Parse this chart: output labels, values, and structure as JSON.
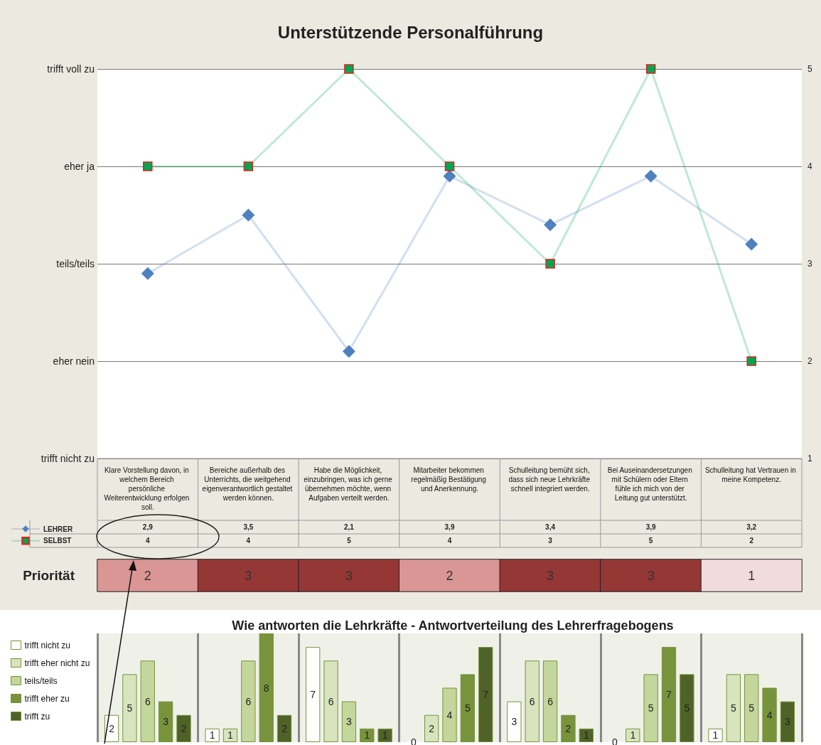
{
  "chart_data": [
    {
      "type": "line",
      "title": "Unterstützende Personalführung",
      "categories": [
        "Klare Vorstellung davon, in welchem Bereich persönliche Weiterentwicklung erfolgen soll.",
        "Bereiche außerhalb des Unterrichts, die weitgehend eigenverantwortlich gestaltet werden können.",
        "Habe die Möglichkeit, einzubringen, was ich gerne übernehmen möchte, wenn Aufgaben verteilt werden.",
        "Mitarbeiter bekommen regelmäßig Bestätigung und Anerkennung.",
        "Schulleitung bemüht sich, dass sich neue Lehrkräfte schnell integriert werden.",
        "Bei Auseinandersetzungen mit Schülern oder Eltern fühle ich mich von der Leitung gut unterstützt.",
        "Schulleitung hat Vertrauen in meine Kompetenz."
      ],
      "series": [
        {
          "name": "LEHRER",
          "color": "#4f81bd",
          "marker": "diamond",
          "values": [
            2.9,
            3.5,
            2.1,
            3.9,
            3.4,
            3.9,
            3.2
          ],
          "value_labels": [
            "2,9",
            "3,5",
            "2,1",
            "3,9",
            "3,4",
            "3,9",
            "3,2"
          ]
        },
        {
          "name": "SELBST",
          "color": "#00a650",
          "marker": "square",
          "values": [
            4,
            4,
            5,
            4,
            3,
            5,
            2
          ],
          "value_labels": [
            "4",
            "4",
            "5",
            "4",
            "3",
            "5",
            "2"
          ]
        }
      ],
      "ylim": [
        1,
        5
      ],
      "yticks": [
        1,
        2,
        3,
        4,
        5
      ],
      "annotations": [
        "trifft nicht zu",
        "eher nein",
        "teils/teils",
        "eher ja",
        "trifft voll zu"
      ],
      "grid": "y",
      "legend": "bottom left"
    },
    {
      "type": "heatmap",
      "categories": [
        null,
        null,
        null,
        null,
        null,
        null,
        null
      ],
      "y_categories": [
        "Priorität"
      ],
      "cells": [
        [
          2,
          3,
          3,
          2,
          3,
          3,
          1
        ]
      ],
      "cell_labels": [
        [
          "2",
          "3",
          "3",
          "2",
          "3",
          "3",
          "1"
        ]
      ]
    },
    {
      "type": "bar",
      "title": "Wie antworten die Lehrkräfte - Antwortverteilung des Lehrerfragebogens",
      "categories": [
        null,
        null,
        null,
        null,
        null,
        null,
        null
      ],
      "series": [
        {
          "name": "trifft nicht zu",
          "color": "#ffffff",
          "values": [
            2,
            1,
            7,
            0,
            3,
            0,
            1
          ]
        },
        {
          "name": "trifft eher nicht zu",
          "color": "#d7e4bd",
          "values": [
            5,
            1,
            6,
            2,
            6,
            1,
            5
          ]
        },
        {
          "name": "teils/teils",
          "color": "#c3d69b",
          "values": [
            6,
            6,
            3,
            4,
            6,
            5,
            5
          ]
        },
        {
          "name": "trifft eher zu",
          "color": "#77933c",
          "values": [
            3,
            8,
            1,
            5,
            2,
            7,
            4
          ]
        },
        {
          "name": "trifft zu",
          "color": "#4f6228",
          "values": [
            2,
            2,
            1,
            7,
            1,
            5,
            3
          ]
        }
      ],
      "data_labels": true,
      "tick_labels": false,
      "grid": "x",
      "legend": "left"
    }
  ]
}
